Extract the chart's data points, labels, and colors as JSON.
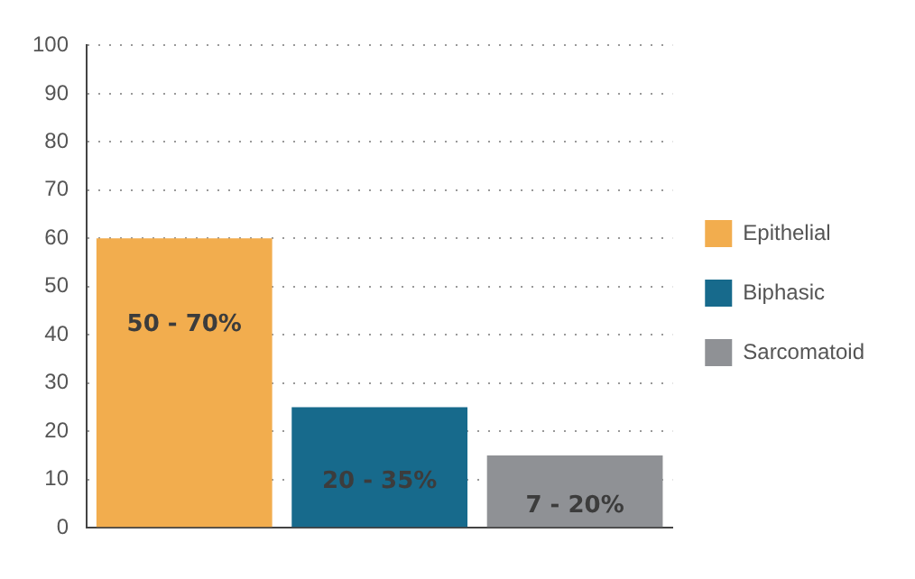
{
  "chart_data": {
    "type": "bar",
    "categories": [
      null,
      null,
      null
    ],
    "series": [
      {
        "name": "Epithelial",
        "color": "#f2ad4e",
        "values": [
          60,
          null,
          null
        ]
      },
      {
        "name": "Biphasic",
        "color": "#176a8c",
        "values": [
          null,
          25,
          null
        ]
      },
      {
        "name": "Sarcomatoid",
        "color": "#8f9195",
        "values": [
          null,
          null,
          15
        ]
      }
    ],
    "annotations": [
      "50 - 70%",
      "20 - 35%",
      "7 - 20%"
    ],
    "ylim": [
      0,
      100
    ],
    "yticks": [
      0,
      10,
      20,
      30,
      40,
      50,
      60,
      70,
      80,
      90,
      100
    ],
    "grid": "y",
    "legend": "right"
  }
}
